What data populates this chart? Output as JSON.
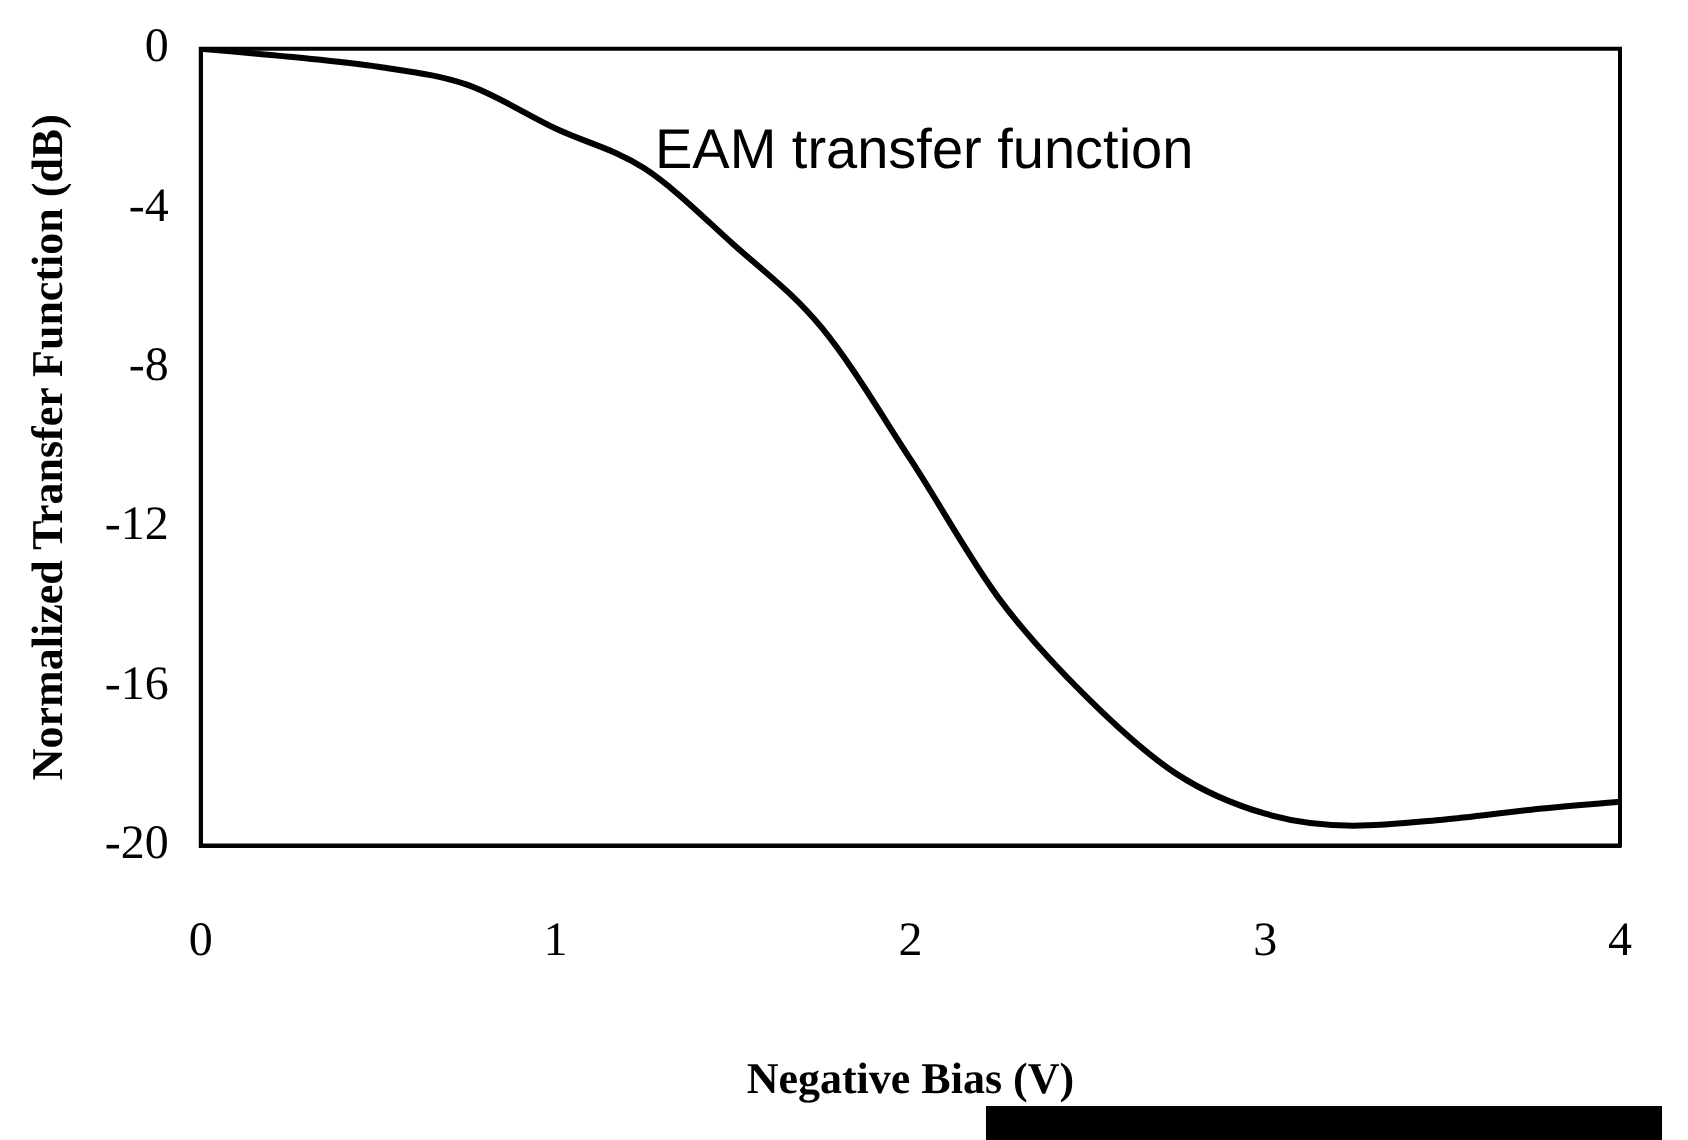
{
  "chart_data": {
    "type": "line",
    "xlabel": "Negative Bias (V)",
    "ylabel": "Normalized Transfer Function (dB)",
    "x": [
      0,
      0.25,
      0.5,
      0.75,
      1,
      1.25,
      1.5,
      1.75,
      2,
      2.25,
      2.5,
      2.75,
      3,
      3.25,
      3.5,
      3.75,
      4
    ],
    "series": [
      {
        "name": "EAM transfer function",
        "color": "#000000",
        "values": [
          0,
          -0.2,
          -0.45,
          -0.9,
          -2,
          -3,
          -4.9,
          -7,
          -10.3,
          -13.8,
          -16.3,
          -18.2,
          -19.2,
          -19.5,
          -19.35,
          -19.1,
          -18.9
        ]
      }
    ],
    "xlim": [
      0,
      4
    ],
    "xticks": [
      0,
      1,
      2,
      3,
      4
    ],
    "ylim": [
      -20,
      0
    ],
    "yticks": [
      0,
      -4,
      -8,
      -12,
      -16,
      -20
    ],
    "grid": false,
    "legend": false,
    "marker": "none",
    "line_style": "solid"
  }
}
